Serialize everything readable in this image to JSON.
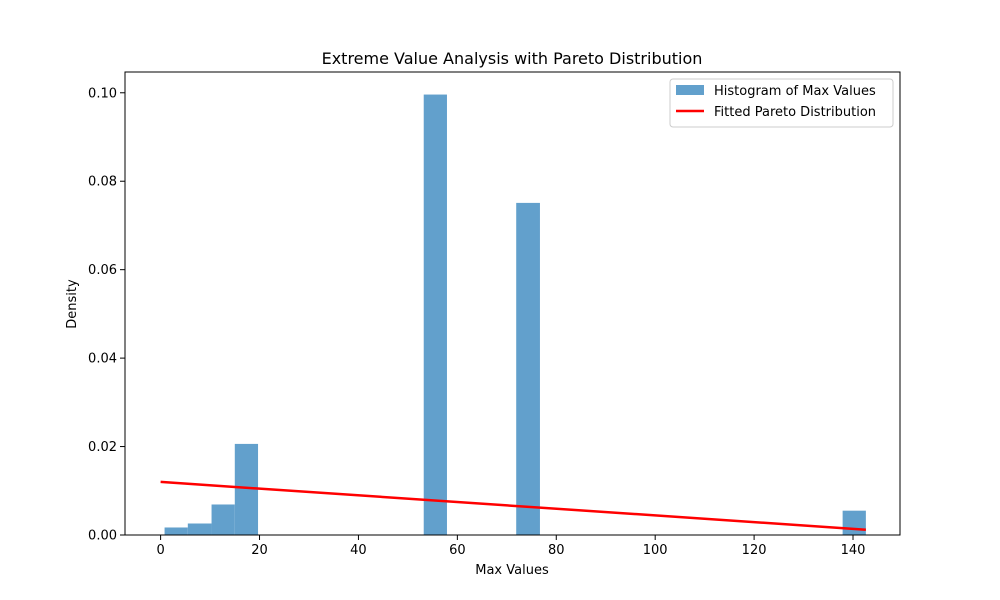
{
  "chart_data": {
    "type": "bar",
    "title": "Extreme Value Analysis with Pareto Distribution",
    "xlabel": "Max Values",
    "ylabel": "Density",
    "xlim": [
      -7.2,
      149.5
    ],
    "ylim": [
      0,
      0.1047
    ],
    "xticks": [
      0,
      20,
      40,
      60,
      80,
      100,
      120,
      140
    ],
    "yticks": [
      0.0,
      0.02,
      0.04,
      0.06,
      0.08,
      0.1
    ],
    "ytick_labels": [
      "0.00",
      "0.02",
      "0.04",
      "0.06",
      "0.08",
      "0.10"
    ],
    "grid": false,
    "legend_position": "top-right",
    "histogram": {
      "name": "Histogram of Max Values",
      "color": "#5f9ecb",
      "bins": [
        {
          "x0": 0.8,
          "x1": 5.5,
          "value": 0.0017
        },
        {
          "x0": 5.5,
          "x1": 10.3,
          "value": 0.0026
        },
        {
          "x0": 10.3,
          "x1": 15.0,
          "value": 0.0069
        },
        {
          "x0": 15.0,
          "x1": 19.7,
          "value": 0.0206
        },
        {
          "x0": 53.2,
          "x1": 57.9,
          "value": 0.0996
        },
        {
          "x0": 71.9,
          "x1": 76.7,
          "value": 0.0751
        },
        {
          "x0": 137.9,
          "x1": 142.6,
          "value": 0.0055
        }
      ]
    },
    "line": {
      "name": "Fitted Pareto Distribution",
      "color": "#ff0000",
      "x": [
        0,
        142.6
      ],
      "y": [
        0.012,
        0.0012
      ]
    }
  }
}
